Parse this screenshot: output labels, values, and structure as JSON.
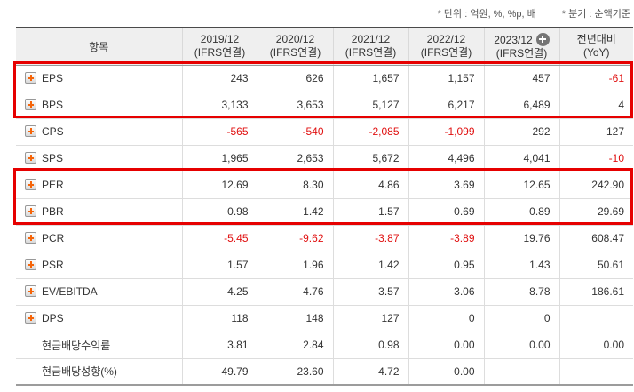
{
  "notes": {
    "unit": "* 단위 : 억원, %, %p, 배",
    "basis": "* 분기 : 순액기준"
  },
  "table": {
    "item_header": "항목",
    "columns": [
      {
        "line1": "2019/12",
        "line2": "(IFRS연결)"
      },
      {
        "line1": "2020/12",
        "line2": "(IFRS연결)"
      },
      {
        "line1": "2021/12",
        "line2": "(IFRS연결)"
      },
      {
        "line1": "2022/12",
        "line2": "(IFRS연결)"
      },
      {
        "line1": "2023/12",
        "line2": "(IFRS연결)",
        "add_icon": "plus-circle-icon"
      },
      {
        "line1": "전년대비",
        "line2": "(YoY)"
      }
    ],
    "rows": [
      {
        "label": "EPS",
        "values": [
          "243",
          "626",
          "1,657",
          "1,157",
          "457",
          "-61"
        ]
      },
      {
        "label": "BPS",
        "values": [
          "3,133",
          "3,653",
          "5,127",
          "6,217",
          "6,489",
          "4"
        ]
      },
      {
        "label": "CPS",
        "values": [
          "-565",
          "-540",
          "-2,085",
          "-1,099",
          "292",
          "127"
        ]
      },
      {
        "label": "SPS",
        "values": [
          "1,965",
          "2,653",
          "5,672",
          "4,496",
          "4,041",
          "-10"
        ]
      },
      {
        "label": "PER",
        "values": [
          "12.69",
          "8.30",
          "4.86",
          "3.69",
          "12.65",
          "242.90"
        ]
      },
      {
        "label": "PBR",
        "values": [
          "0.98",
          "1.42",
          "1.57",
          "0.69",
          "0.89",
          "29.69"
        ]
      },
      {
        "label": "PCR",
        "values": [
          "-5.45",
          "-9.62",
          "-3.87",
          "-3.89",
          "19.76",
          "608.47"
        ]
      },
      {
        "label": "PSR",
        "values": [
          "1.57",
          "1.96",
          "1.42",
          "0.95",
          "1.43",
          "50.61"
        ]
      },
      {
        "label": "EV/EBITDA",
        "values": [
          "4.25",
          "4.76",
          "3.57",
          "3.06",
          "8.78",
          "186.61"
        ]
      },
      {
        "label": "DPS",
        "values": [
          "118",
          "148",
          "127",
          "0",
          "0",
          ""
        ]
      },
      {
        "label": "현금배당수익률",
        "values": [
          "3.81",
          "2.84",
          "0.98",
          "0.00",
          "0.00",
          "0.00"
        ]
      },
      {
        "label": "현금배당성향(%)",
        "values": [
          "49.79",
          "23.60",
          "4.72",
          "0.00",
          "",
          ""
        ]
      }
    ],
    "highlighted_row_groups": [
      [
        "EPS",
        "BPS"
      ],
      [
        "PER",
        "PBR"
      ]
    ]
  },
  "colors": {
    "negative_value": "#e01010",
    "highlight_border": "#e60000",
    "accent_orange": "#f5650a",
    "header_bg": "#efefef"
  }
}
